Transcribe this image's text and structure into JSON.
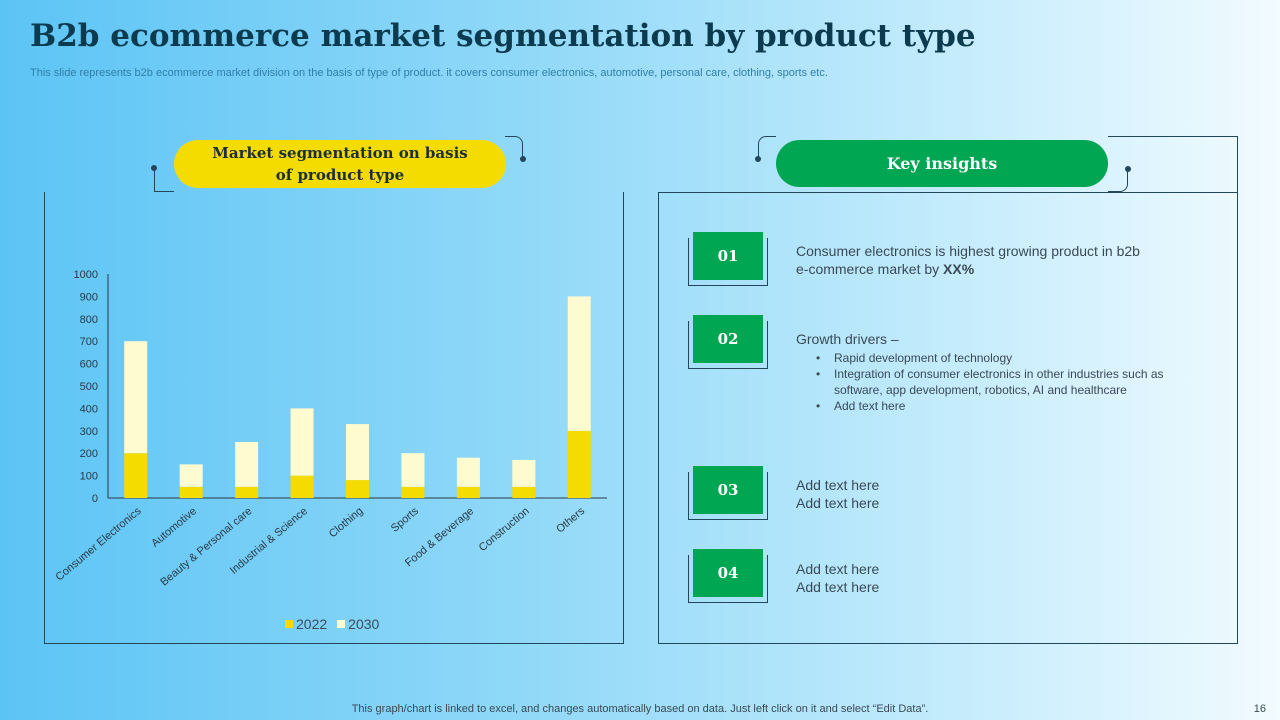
{
  "title": "B2b ecommerce market segmentation by product type",
  "subtitle": "This slide represents b2b ecommerce market division on the basis of type of product. it covers consumer electronics, automotive, personal care, clothing, sports etc.",
  "left_heading_line1": "Market segmentation on basis",
  "left_heading_line2": "of product type",
  "right_heading": "Key insights",
  "colors": {
    "s2022": "#f5dc00",
    "s2030": "#fffbd0",
    "green": "#00a651"
  },
  "chart_data": {
    "type": "bar",
    "stacked": true,
    "categories": [
      "Consumer Electronics",
      "Automotive",
      "Beauty & Personal care",
      "Industrial & Science",
      "Clothing",
      "Sports",
      "Food & Beverage",
      "Construction",
      "Others"
    ],
    "series": [
      {
        "name": "2022",
        "values": [
          200,
          50,
          50,
          100,
          80,
          50,
          50,
          50,
          300
        ]
      },
      {
        "name": "2030",
        "values": [
          500,
          100,
          200,
          300,
          250,
          150,
          130,
          120,
          600
        ]
      }
    ],
    "yticks": [
      "0",
      "100",
      "200",
      "300",
      "400",
      "500",
      "600",
      "700",
      "800",
      "900",
      "1000"
    ],
    "ylim": [
      0,
      1000
    ],
    "legend": "bottom"
  },
  "insights": [
    {
      "num": "01",
      "line1": "Consumer electronics is highest growing product in b2b",
      "line2": "e-commerce market by ",
      "bold": "XX%"
    },
    {
      "num": "02",
      "line1": "Growth drivers –",
      "bullets": [
        "Rapid development  of technology",
        "Integration of consumer electronics in other industries such as software,  app development,  robotics, AI and healthcare",
        "Add text here"
      ]
    },
    {
      "num": "03",
      "line1": "Add text here",
      "line2": "Add text here"
    },
    {
      "num": "04",
      "line1": "Add text here",
      "line2": "Add text here"
    }
  ],
  "footer": "This graph/chart is linked to excel,  and changes automatically based on data. Just left click on it and select “Edit Data”.",
  "page_number": "16"
}
